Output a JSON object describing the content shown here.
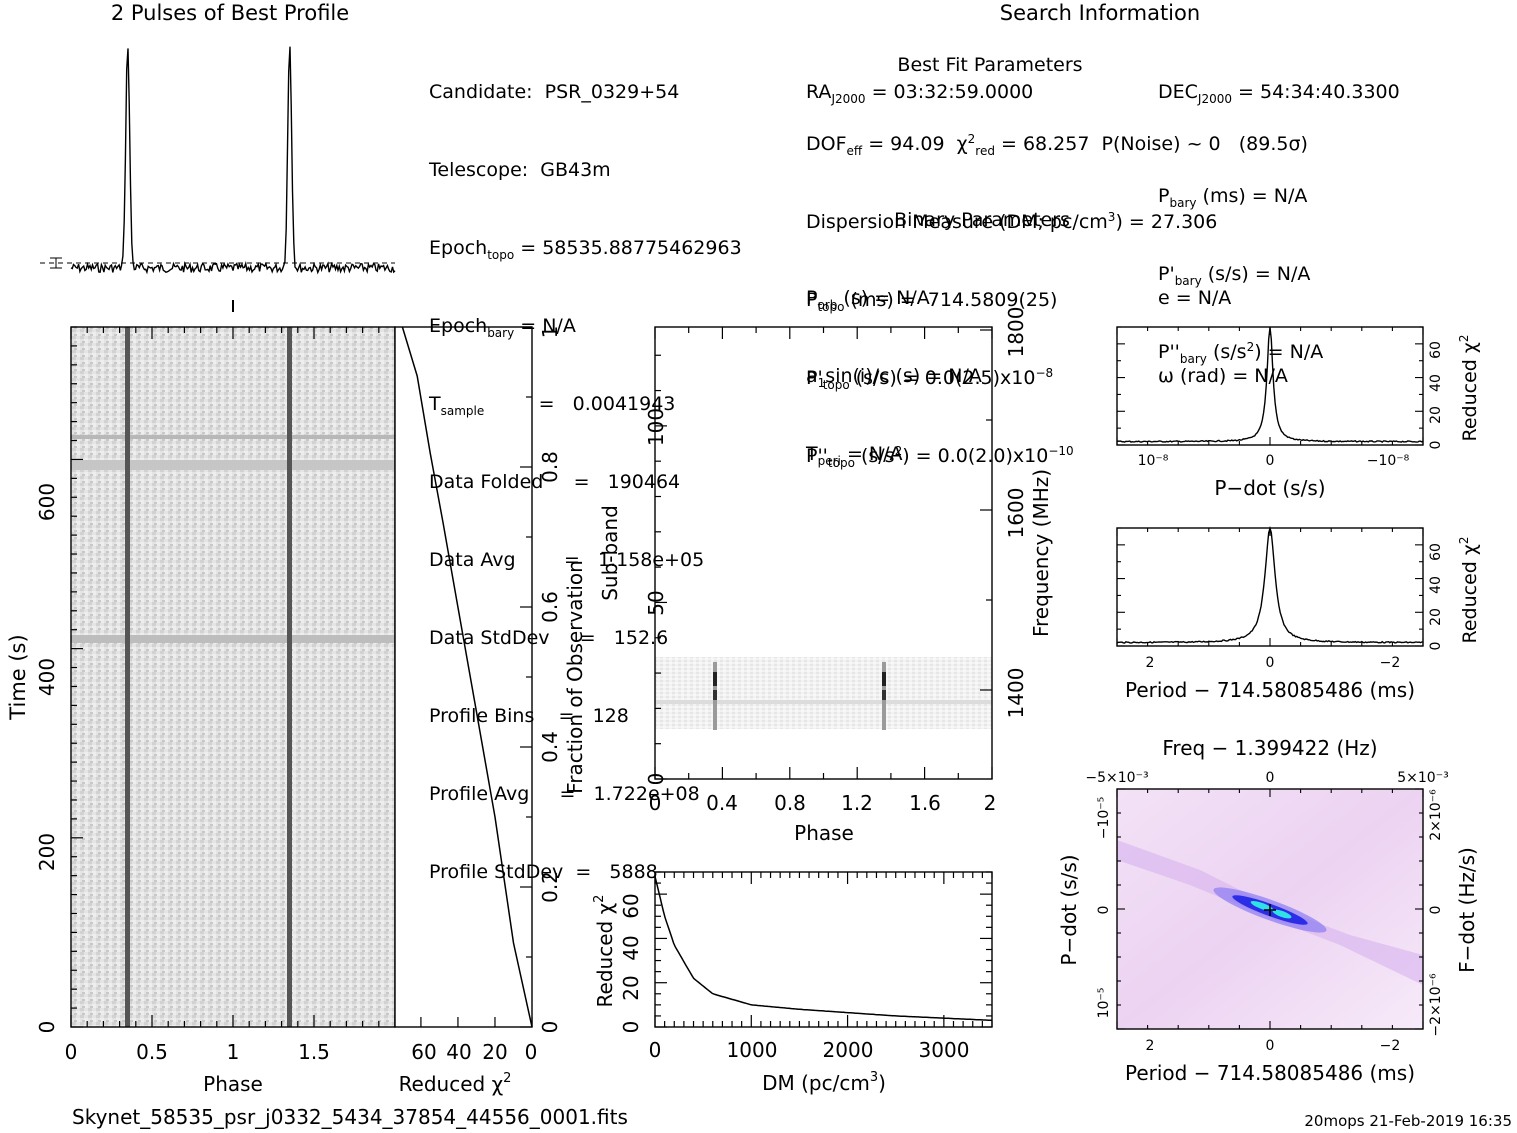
{
  "profile_title": "2 Pulses of Best Profile",
  "search_title": "Search Information",
  "best_fit_title": "Best Fit Parameters",
  "binary_title": "Binary Parameters",
  "candidate_info": [
    {
      "label": "Candidate:",
      "value": "PSR_0329+54"
    },
    {
      "label": "Telescope:",
      "value": "GB43m"
    },
    {
      "label": "Epoch",
      "sub": "topo",
      "value": "= 58535.88775462963"
    },
    {
      "label": "Epoch",
      "sub": "bary",
      "value": "= N/A"
    },
    {
      "label": "T",
      "sub": "sample",
      "value": "=   0.0041943"
    },
    {
      "label": "Data Folded",
      "value": "=   190464"
    },
    {
      "label": "Data Avg",
      "value": "=   1.158e+05"
    },
    {
      "label": "Data StdDev",
      "value": "=   152.6"
    },
    {
      "label": "Profile Bins",
      "value": "=   128"
    },
    {
      "label": "Profile Avg",
      "value": "=   1.722e+08"
    },
    {
      "label": "Profile StdDev",
      "value": "=   5888"
    }
  ],
  "search_info": {
    "ra": "= 03:32:59.0000",
    "dec": "= 54:34:40.3300",
    "dof": "= 94.09",
    "chi2": "= 68.257",
    "pnoise": "P(Noise) ~ 0   (89.5σ)",
    "dm": "Dispersion Measure (DM; pc/cm",
    "dm_value": ") = 27.306",
    "ptopo": "(ms) =  714.5809(25)",
    "pbary": "(ms) = N/A",
    "pdtopo": "(s/s) = 0.0(2.5)x10",
    "pdtopo_exp": "−8",
    "pdbary": "(s/s) = N/A",
    "pddtopo": ") = 0.0(2.0)x10",
    "pddtopo_exp": "−10",
    "pddbary": ") = N/A",
    "porb": "(s) = N/A",
    "e": "e = N/A",
    "asini": "sin(i)/c (s) = N/A",
    "omega": "ω (rad) = N/A",
    "tperi": "= N/A"
  },
  "axes": {
    "phase": "Phase",
    "time": "Time (s)",
    "reduced_chi2": "Reduced χ",
    "fraction_obs": "Fraction of Observation",
    "sub_band": "Sub-band",
    "frequency": "Frequency (MHz)",
    "dm": "DM (pc/cm",
    "dm_close": ")",
    "pdot": "P−dot (s/s)",
    "period": "Period − 714.58085486 (ms)",
    "freq_top": "Freq − 1.399422 (Hz)",
    "fdot": "F−dot (Hz/s)"
  },
  "ticks": {
    "phase": [
      "0",
      "0.5",
      "1",
      "1.5"
    ],
    "time": [
      "0",
      "200",
      "400",
      "600"
    ],
    "chi2_horiz": [
      "60",
      "40",
      "20",
      "0"
    ],
    "fraction": [
      "0",
      "0.2",
      "0.4",
      "0.6",
      "0.8",
      "1"
    ],
    "subband_phase": [
      "0",
      "0.4",
      "0.8",
      "1.2",
      "1.6",
      "2"
    ],
    "subband": [
      "0",
      "50",
      "100"
    ],
    "freq": [
      "1400",
      "1600",
      "1800"
    ],
    "dm": [
      "0",
      "1000",
      "2000",
      "3000"
    ],
    "chi2_vert": [
      "0",
      "20",
      "40",
      "60"
    ],
    "pdot_small": [
      "10⁻⁸",
      "0",
      "−10⁻⁸"
    ],
    "period_small": [
      "2",
      "0",
      "−2"
    ],
    "freq_top": [
      "−5×10⁻³",
      "0",
      "5×10⁻³"
    ],
    "pdot_left": [
      "−10⁻⁵",
      "0",
      "10⁻⁵"
    ],
    "fdot_right": [
      "2×10⁻⁶",
      "0",
      "−2×10⁻⁶"
    ]
  },
  "footer": {
    "filename": "Skynet_58535_psr_j0332_5434_37854_44556_0001.fits",
    "stamp": "20mops 21-Feb-2019 16:35"
  },
  "chart_data": [
    {
      "type": "line",
      "title": "2 Pulses of Best Profile",
      "x_range": [
        0,
        2
      ],
      "peaks_at_phase": [
        0.35,
        1.35
      ]
    },
    {
      "type": "heatmap",
      "xlabel": "Phase",
      "ylabel": "Time (s)",
      "xlim": [
        0,
        2
      ],
      "ylim": [
        0,
        740
      ],
      "pulse_phase": [
        0.35,
        1.35
      ]
    },
    {
      "type": "line",
      "xlabel": "Reduced χ²",
      "ylabel": "Fraction of Observation",
      "x": [
        70,
        62,
        55,
        48,
        40,
        30,
        20,
        10,
        0
      ],
      "y": [
        1.0,
        0.93,
        0.82,
        0.72,
        0.6,
        0.45,
        0.3,
        0.12,
        0.0
      ]
    },
    {
      "type": "heatmap",
      "xlabel": "Phase",
      "ylabel": "Sub-band",
      "ylabel2": "Frequency (MHz)",
      "xlim": [
        0,
        2
      ],
      "ylim": [
        0,
        128
      ],
      "pulse_phase": [
        0.35,
        1.35
      ]
    },
    {
      "type": "line",
      "xlabel": "DM (pc/cm³)",
      "ylabel": "Reduced χ²",
      "xlim": [
        0,
        3500
      ],
      "ylim": [
        0,
        70
      ],
      "x": [
        0,
        100,
        200,
        400,
        600,
        1000,
        1500,
        2000,
        2500,
        3000,
        3500
      ],
      "y": [
        68,
        50,
        37,
        22,
        15,
        10,
        8,
        6.5,
        5,
        4,
        3
      ]
    },
    {
      "type": "line",
      "xlabel": "P−dot (s/s)",
      "ylabel": "Reduced χ²",
      "ylim": [
        0,
        70
      ],
      "peak": 68
    },
    {
      "type": "line",
      "xlabel": "Period − 714.58085486 (ms)",
      "ylabel": "Reduced χ²",
      "xlim": [
        2.5,
        -2.5
      ],
      "ylim": [
        0,
        70
      ],
      "peak": 68
    },
    {
      "type": "heatmap",
      "xlabel": "Period − 714.58085486 (ms)",
      "ylabel": "P−dot (s/s)",
      "xlabel2": "Freq − 1.399422 (Hz)",
      "ylabel2": "F−dot (Hz/s)"
    }
  ]
}
